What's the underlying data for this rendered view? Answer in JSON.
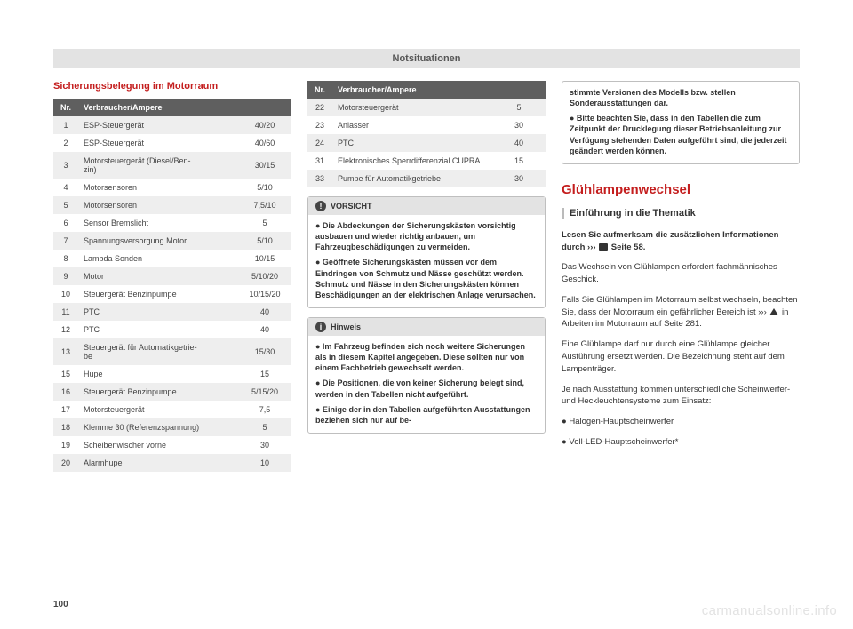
{
  "header": "Notsituationen",
  "page_number": "100",
  "watermark": "carmanualsonline.info",
  "colors": {
    "accent_red": "#c41e1e",
    "header_gray": "#e3e3e3",
    "table_header_bg": "#5f5f5f",
    "row_odd_bg": "#eeeeee",
    "row_even_bg": "#ffffff",
    "border_gray": "#bfbfbf"
  },
  "col1": {
    "title": "Sicherungsbelegung im Motorraum",
    "table": {
      "headers": {
        "nr": "Nr.",
        "desc": "Verbraucher/Ampere"
      },
      "rows": [
        {
          "nr": "1",
          "desc": "ESP-Steuergerät",
          "amp": "40/20"
        },
        {
          "nr": "2",
          "desc": "ESP-Steuergerät",
          "amp": "40/60"
        },
        {
          "nr": "3",
          "desc": "Motorsteuergerät (Diesel/Ben-\nzin)",
          "amp": "30/15"
        },
        {
          "nr": "4",
          "desc": "Motorsensoren",
          "amp": "5/10"
        },
        {
          "nr": "5",
          "desc": "Motorsensoren",
          "amp": "7,5/10"
        },
        {
          "nr": "6",
          "desc": "Sensor Bremslicht",
          "amp": "5"
        },
        {
          "nr": "7",
          "desc": "Spannungsversorgung Motor",
          "amp": "5/10"
        },
        {
          "nr": "8",
          "desc": "Lambda Sonden",
          "amp": "10/15"
        },
        {
          "nr": "9",
          "desc": "Motor",
          "amp": "5/10/20"
        },
        {
          "nr": "10",
          "desc": "Steuergerät Benzinpumpe",
          "amp": "10/15/20"
        },
        {
          "nr": "11",
          "desc": "PTC",
          "amp": "40"
        },
        {
          "nr": "12",
          "desc": "PTC",
          "amp": "40"
        },
        {
          "nr": "13",
          "desc": "Steuergerät für Automatikgetrie-\nbe",
          "amp": "15/30"
        },
        {
          "nr": "15",
          "desc": "Hupe",
          "amp": "15"
        },
        {
          "nr": "16",
          "desc": "Steuergerät Benzinpumpe",
          "amp": "5/15/20"
        },
        {
          "nr": "17",
          "desc": "Motorsteuergerät",
          "amp": "7,5"
        },
        {
          "nr": "18",
          "desc": "Klemme 30 (Referenzspannung)",
          "amp": "5"
        },
        {
          "nr": "19",
          "desc": "Scheibenwischer vorne",
          "amp": "30"
        },
        {
          "nr": "20",
          "desc": "Alarmhupe",
          "amp": "10"
        }
      ]
    }
  },
  "col2": {
    "table": {
      "headers": {
        "nr": "Nr.",
        "desc": "Verbraucher/Ampere"
      },
      "rows": [
        {
          "nr": "22",
          "desc": "Motorsteuergerät",
          "amp": "5"
        },
        {
          "nr": "23",
          "desc": "Anlasser",
          "amp": "30"
        },
        {
          "nr": "24",
          "desc": "PTC",
          "amp": "40"
        },
        {
          "nr": "31",
          "desc": "Elektronisches Sperrdifferenzial CUPRA",
          "amp": "15"
        },
        {
          "nr": "33",
          "desc": "Pumpe für Automatikgetriebe",
          "amp": "30"
        }
      ]
    },
    "vorsicht": {
      "label": "VORSICHT",
      "items": [
        "Die Abdeckungen der Sicherungskästen vorsichtig ausbauen und wieder richtig anbauen, um Fahrzeugbeschädigungen zu vermeiden.",
        "Geöffnete Sicherungskästen müssen vor dem Eindringen von Schmutz und Nässe geschützt werden. Schmutz und Nässe in den Sicherungskästen können Beschädigungen an der elektrischen Anlage verursachen."
      ]
    },
    "hinweis": {
      "label": "Hinweis",
      "items": [
        "Im Fahrzeug befinden sich noch weitere Sicherungen als in diesem Kapitel angegeben. Diese sollten nur von einem Fachbetrieb gewechselt werden.",
        "Die Positionen, die von keiner Sicherung belegt sind, werden in den Tabellen nicht aufgeführt.",
        "Einige der in den Tabellen aufgeführten Ausstattungen beziehen sich nur auf be-"
      ]
    }
  },
  "col3": {
    "tail_items": [
      "stimmte Versionen des Modells bzw. stellen Sonderausstattungen dar.",
      "Bitte beachten Sie, dass in den Tabellen die zum Zeitpunkt der Drucklegung dieser Betriebsanleitung zur Verfügung stehenden Daten aufgeführt sind, die jederzeit geändert werden können."
    ],
    "h2": "Glühlampenwechsel",
    "h3": "Einführung in die Thematik",
    "lead_a": "Lesen Sie aufmerksam die zusätzlichen Informationen durch ››› ",
    "lead_b": " Seite 58.",
    "paras": [
      "Das Wechseln von Glühlampen erfordert fachmännisches Geschick.",
      "Falls Sie Glühlampen im Motorraum selbst wechseln, beachten Sie, dass der Motorraum ein gefährlicher Bereich ist ›››  in Arbeiten im Motorraum auf Seite 281.",
      "Eine Glühlampe darf nur durch eine Glühlampe gleicher Ausführung ersetzt werden. Die Bezeichnung steht auf dem Lampenträger.",
      "Je nach Ausstattung kommen unterschiedliche Scheinwerfer- und Heckleuchtensysteme zum Einsatz:"
    ],
    "bullets": [
      "Halogen-Hauptscheinwerfer",
      "Voll-LED-Hauptscheinwerfer*"
    ]
  }
}
